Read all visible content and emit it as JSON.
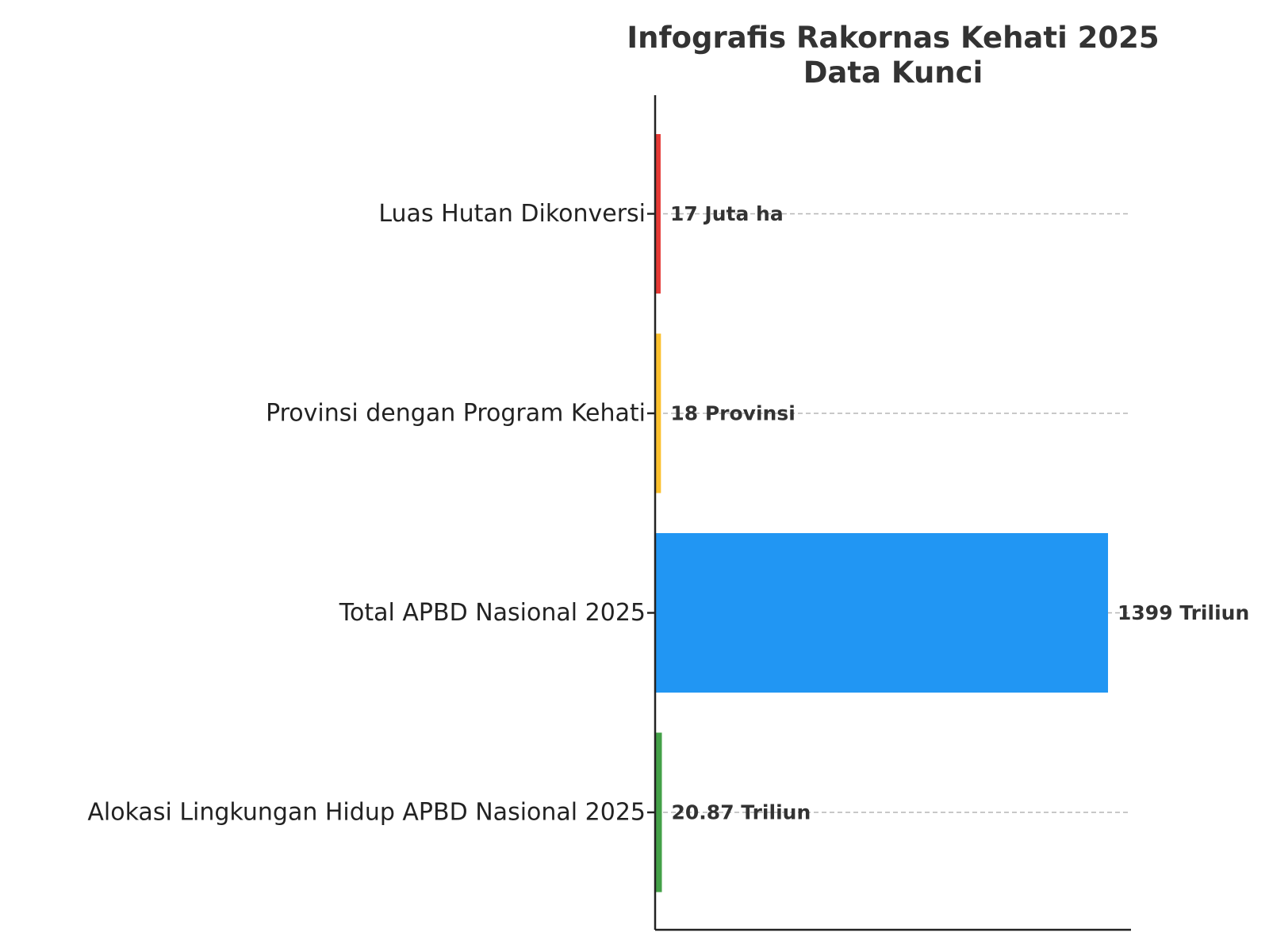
{
  "chart_data": {
    "type": "bar",
    "orientation": "horizontal",
    "title": "Infografis Rakornas Kehati 2025\nData Kunci",
    "title_lines": [
      "Infografis Rakornas Kehati 2025",
      "Data Kunci"
    ],
    "categories": [
      "Luas Hutan Dikonversi",
      "Provinsi dengan Program Kehati",
      "Total APBD Nasional 2025",
      "Alokasi Lingkungan Hidup APBD Nasional 2025"
    ],
    "values": [
      17,
      18,
      1399,
      20.87
    ],
    "data_labels": [
      "17 Juta ha",
      "18 Provinsi",
      "1399 Triliun",
      "20.87 Triliun"
    ],
    "colors": [
      "#e53935",
      "#fbc02d",
      "#2196f3",
      "#43a047"
    ],
    "xlabel": "",
    "ylabel": "",
    "xlim": [
      0,
      1470
    ],
    "grid": "x-dashed",
    "legend": "none"
  }
}
